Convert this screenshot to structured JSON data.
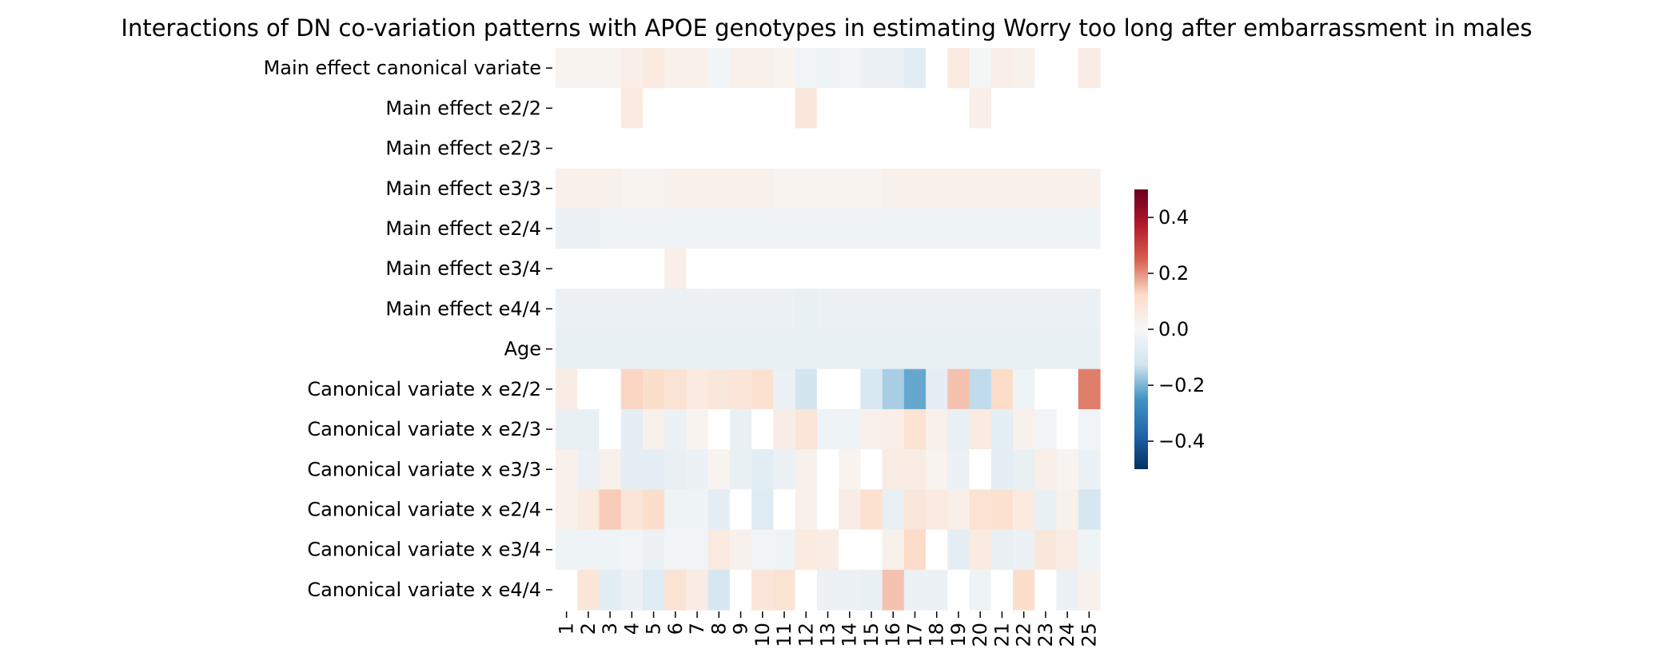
{
  "chart_data": {
    "type": "heatmap",
    "title": "Interactions of DN co-variation patterns with APOE genotypes in estimating Worry too long after embarrassment in males",
    "xlabel": "",
    "ylabel": "",
    "x_categories": [
      "1",
      "2",
      "3",
      "4",
      "5",
      "6",
      "7",
      "8",
      "9",
      "10",
      "11",
      "12",
      "13",
      "14",
      "15",
      "16",
      "17",
      "18",
      "19",
      "20",
      "21",
      "22",
      "23",
      "24",
      "25"
    ],
    "y_categories": [
      "Main effect canonical variate",
      "Main effect e2/2",
      "Main effect e2/3",
      "Main effect e3/3",
      "Main effect e2/4",
      "Main effect e3/4",
      "Main effect e4/4",
      "Age",
      "Canonical variate x e2/2",
      "Canonical variate x e2/3",
      "Canonical variate x e3/3",
      "Canonical variate x e2/4",
      "Canonical variate x e3/4",
      "Canonical variate x e4/4"
    ],
    "values": [
      [
        0.02,
        0.02,
        0.02,
        0.04,
        0.06,
        0.03,
        0.03,
        -0.02,
        0.03,
        0.03,
        0.02,
        -0.02,
        -0.03,
        -0.02,
        -0.04,
        -0.04,
        -0.07,
        null,
        0.06,
        -0.01,
        0.04,
        0.03,
        null,
        null,
        0.05
      ],
      [
        null,
        null,
        null,
        0.06,
        null,
        null,
        null,
        null,
        null,
        null,
        null,
        0.07,
        null,
        null,
        null,
        null,
        null,
        null,
        null,
        0.04,
        null,
        null,
        null,
        null,
        null
      ],
      [
        null,
        null,
        null,
        null,
        null,
        null,
        null,
        null,
        null,
        null,
        null,
        null,
        null,
        null,
        null,
        null,
        null,
        null,
        null,
        null,
        null,
        null,
        null,
        null,
        null
      ],
      [
        0.03,
        0.03,
        0.03,
        0.02,
        0.02,
        0.03,
        0.03,
        0.03,
        0.03,
        0.03,
        0.02,
        0.02,
        0.02,
        0.02,
        0.02,
        0.03,
        0.03,
        0.03,
        0.03,
        0.03,
        0.03,
        0.03,
        0.03,
        0.03,
        0.03
      ],
      [
        -0.04,
        -0.04,
        -0.03,
        -0.03,
        -0.03,
        -0.03,
        -0.03,
        -0.03,
        -0.03,
        -0.03,
        -0.03,
        -0.03,
        -0.03,
        -0.03,
        -0.03,
        -0.03,
        -0.03,
        -0.03,
        -0.03,
        -0.03,
        -0.03,
        -0.03,
        -0.03,
        -0.03,
        -0.03
      ],
      [
        null,
        null,
        null,
        null,
        null,
        0.04,
        null,
        null,
        null,
        null,
        null,
        null,
        null,
        null,
        null,
        null,
        null,
        null,
        null,
        null,
        null,
        null,
        null,
        null,
        null
      ],
      [
        -0.04,
        -0.04,
        -0.04,
        -0.04,
        -0.04,
        -0.04,
        -0.04,
        -0.04,
        -0.04,
        -0.04,
        -0.04,
        -0.05,
        -0.04,
        -0.04,
        -0.04,
        -0.04,
        -0.04,
        -0.04,
        -0.04,
        -0.04,
        -0.04,
        -0.04,
        -0.04,
        -0.04,
        -0.04
      ],
      [
        -0.05,
        -0.05,
        -0.05,
        -0.05,
        -0.05,
        -0.05,
        -0.05,
        -0.05,
        -0.05,
        -0.05,
        -0.05,
        -0.05,
        -0.05,
        -0.05,
        -0.05,
        -0.05,
        -0.05,
        -0.05,
        -0.05,
        -0.05,
        -0.05,
        -0.05,
        -0.05,
        -0.05,
        -0.05
      ],
      [
        0.05,
        null,
        null,
        0.13,
        0.11,
        0.09,
        0.06,
        0.07,
        0.08,
        0.1,
        -0.04,
        -0.12,
        null,
        null,
        -0.1,
        -0.16,
        -0.22,
        -0.06,
        0.15,
        -0.14,
        0.12,
        -0.03,
        null,
        null,
        0.22
      ],
      [
        -0.05,
        -0.05,
        null,
        -0.06,
        0.03,
        -0.04,
        0.02,
        null,
        -0.05,
        null,
        0.05,
        0.08,
        -0.03,
        -0.03,
        0.03,
        0.04,
        0.09,
        0.03,
        -0.05,
        0.06,
        -0.06,
        0.03,
        -0.02,
        null,
        -0.02
      ],
      [
        0.03,
        -0.04,
        0.03,
        -0.06,
        -0.06,
        -0.05,
        -0.04,
        0.02,
        -0.05,
        -0.07,
        -0.04,
        0.03,
        null,
        0.02,
        null,
        0.05,
        0.05,
        0.02,
        -0.04,
        null,
        -0.06,
        -0.05,
        0.04,
        0.02,
        -0.04
      ],
      [
        0.03,
        0.06,
        0.14,
        0.08,
        0.11,
        -0.03,
        -0.03,
        -0.06,
        null,
        -0.08,
        null,
        0.03,
        null,
        0.05,
        0.1,
        -0.05,
        0.07,
        0.06,
        0.04,
        0.09,
        0.1,
        0.06,
        -0.05,
        0.03,
        -0.11
      ],
      [
        -0.03,
        -0.03,
        -0.03,
        -0.02,
        -0.04,
        -0.02,
        -0.02,
        0.06,
        0.03,
        -0.02,
        -0.03,
        0.06,
        0.05,
        null,
        null,
        0.03,
        0.12,
        null,
        -0.06,
        0.06,
        -0.05,
        -0.04,
        0.07,
        0.05,
        -0.03
      ],
      [
        null,
        0.08,
        -0.07,
        -0.04,
        -0.08,
        0.09,
        0.05,
        -0.11,
        null,
        0.08,
        0.09,
        null,
        -0.04,
        -0.04,
        -0.05,
        0.15,
        -0.04,
        -0.04,
        null,
        -0.03,
        null,
        0.11,
        null,
        -0.04,
        0.03
      ]
    ],
    "vmin": -0.5,
    "vmax": 0.5,
    "colormap": "RdBu_r",
    "missing_color": "#ffffff",
    "colorbar": {
      "ticks": [
        0.4,
        0.2,
        0.0,
        -0.2,
        -0.4
      ],
      "tick_labels": [
        "0.4",
        "0.2",
        "0.0",
        "−0.2",
        "−0.4"
      ],
      "placement": "right"
    },
    "grid": false
  }
}
